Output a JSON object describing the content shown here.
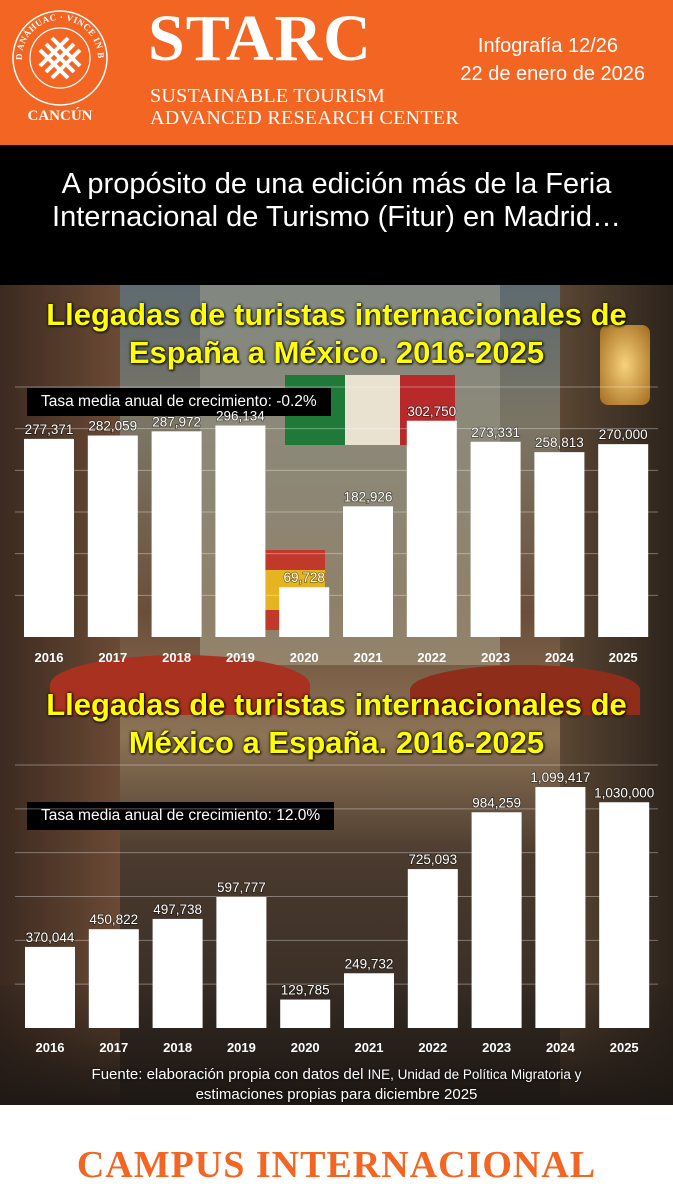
{
  "header": {
    "seal_ring_text": "UNIVERSIDAD ANÁHUAC · VINCE IN BONO MALUM",
    "seal_caption": "CANCÚN",
    "brand_name": "STARC",
    "brand_line1": "SUSTAINABLE TOURISM",
    "brand_line2": "ADVANCED RESEARCH CENTER",
    "issue": "Infografía 12/26",
    "date": "22 de enero de 2026",
    "accent_color": "#f26522"
  },
  "banner": {
    "text": "A propósito de una edición más de la Feria Internacional de Turismo (Fitur) en Madrid…"
  },
  "chart_data": [
    {
      "type": "bar",
      "title": "Llegadas de turistas internacionales de España a México. 2016-2025",
      "annotation": "Tasa media anual de crecimiento: -0.2%",
      "categories": [
        "2016",
        "2017",
        "2018",
        "2019",
        "2020",
        "2021",
        "2022",
        "2023",
        "2024",
        "2025"
      ],
      "values": [
        277371,
        282059,
        287972,
        296134,
        69728,
        182926,
        302750,
        273331,
        258813,
        270000
      ],
      "value_labels": [
        "277,371",
        "282,059",
        "287,972",
        "296,134",
        "69,728",
        "182,926",
        "302,750",
        "273,331",
        "258,813",
        "270,000"
      ],
      "ylim": [
        0,
        350000
      ],
      "grid": true,
      "bar_color": "#ffffff"
    },
    {
      "type": "bar",
      "title": "Llegadas de turistas internacionales de México a España. 2016-2025",
      "annotation": "Tasa media anual de crecimiento: 12.0%",
      "categories": [
        "2016",
        "2017",
        "2018",
        "2019",
        "2020",
        "2021",
        "2022",
        "2023",
        "2024",
        "2025"
      ],
      "values": [
        370044,
        450822,
        497738,
        597777,
        129785,
        249732,
        725093,
        984259,
        1099417,
        1030000
      ],
      "value_labels": [
        "370,044",
        "450,822",
        "497,738",
        "597,777",
        "129,785",
        "249,732",
        "725,093",
        "984,259",
        "1,099,417",
        "1,030,000"
      ],
      "ylim": [
        0,
        1200000
      ],
      "grid": true,
      "bar_color": "#ffffff"
    }
  ],
  "source": {
    "line1_a": "Fuente: elaboración propia con datos del ",
    "line1_b": "INE, Unidad de Política Migratoria y",
    "line2": "estimaciones propias para diciembre 2025"
  },
  "footer": {
    "text": "CAMPUS INTERNACIONAL"
  }
}
